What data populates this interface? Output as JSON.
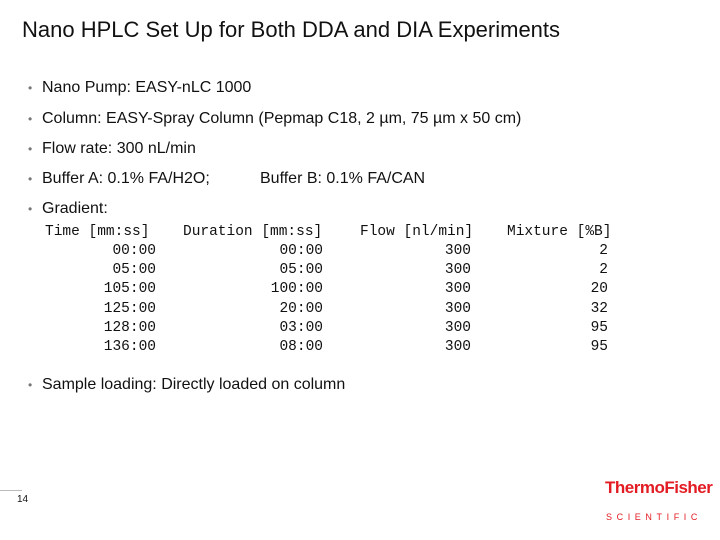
{
  "header": {
    "title": "Nano HPLC Set Up for Both DDA and DIA Experiments"
  },
  "bullets": [
    "Nano Pump: EASY-nLC 1000",
    "Column: EASY-Spray Column (Pepmap C18, 2 µm, 75 µm x 50 cm)",
    "Flow rate: 300 nL/min",
    {
      "buffer_a": "Buffer A: 0.1% FA/H2O;",
      "buffer_b": "Buffer B: 0.1% FA/CAN"
    },
    "Gradient:",
    "Sample loading: Directly loaded on column"
  ],
  "table": {
    "headers": [
      "Time [mm:ss]",
      "Duration [mm:ss]",
      "Flow [nl/min]",
      "Mixture [%B]"
    ],
    "rows": [
      [
        "00:00",
        "00:00",
        300,
        2
      ],
      [
        "05:00",
        "05:00",
        300,
        2
      ],
      [
        "105:00",
        "100:00",
        300,
        20
      ],
      [
        "125:00",
        "20:00",
        300,
        32
      ],
      [
        "128:00",
        "03:00",
        300,
        95
      ],
      [
        "136:00",
        "08:00",
        300,
        95
      ]
    ]
  },
  "footer": {
    "page": "14",
    "logo_name": "ThermoFisher",
    "logo_sub": "SCIENTIFIC"
  }
}
